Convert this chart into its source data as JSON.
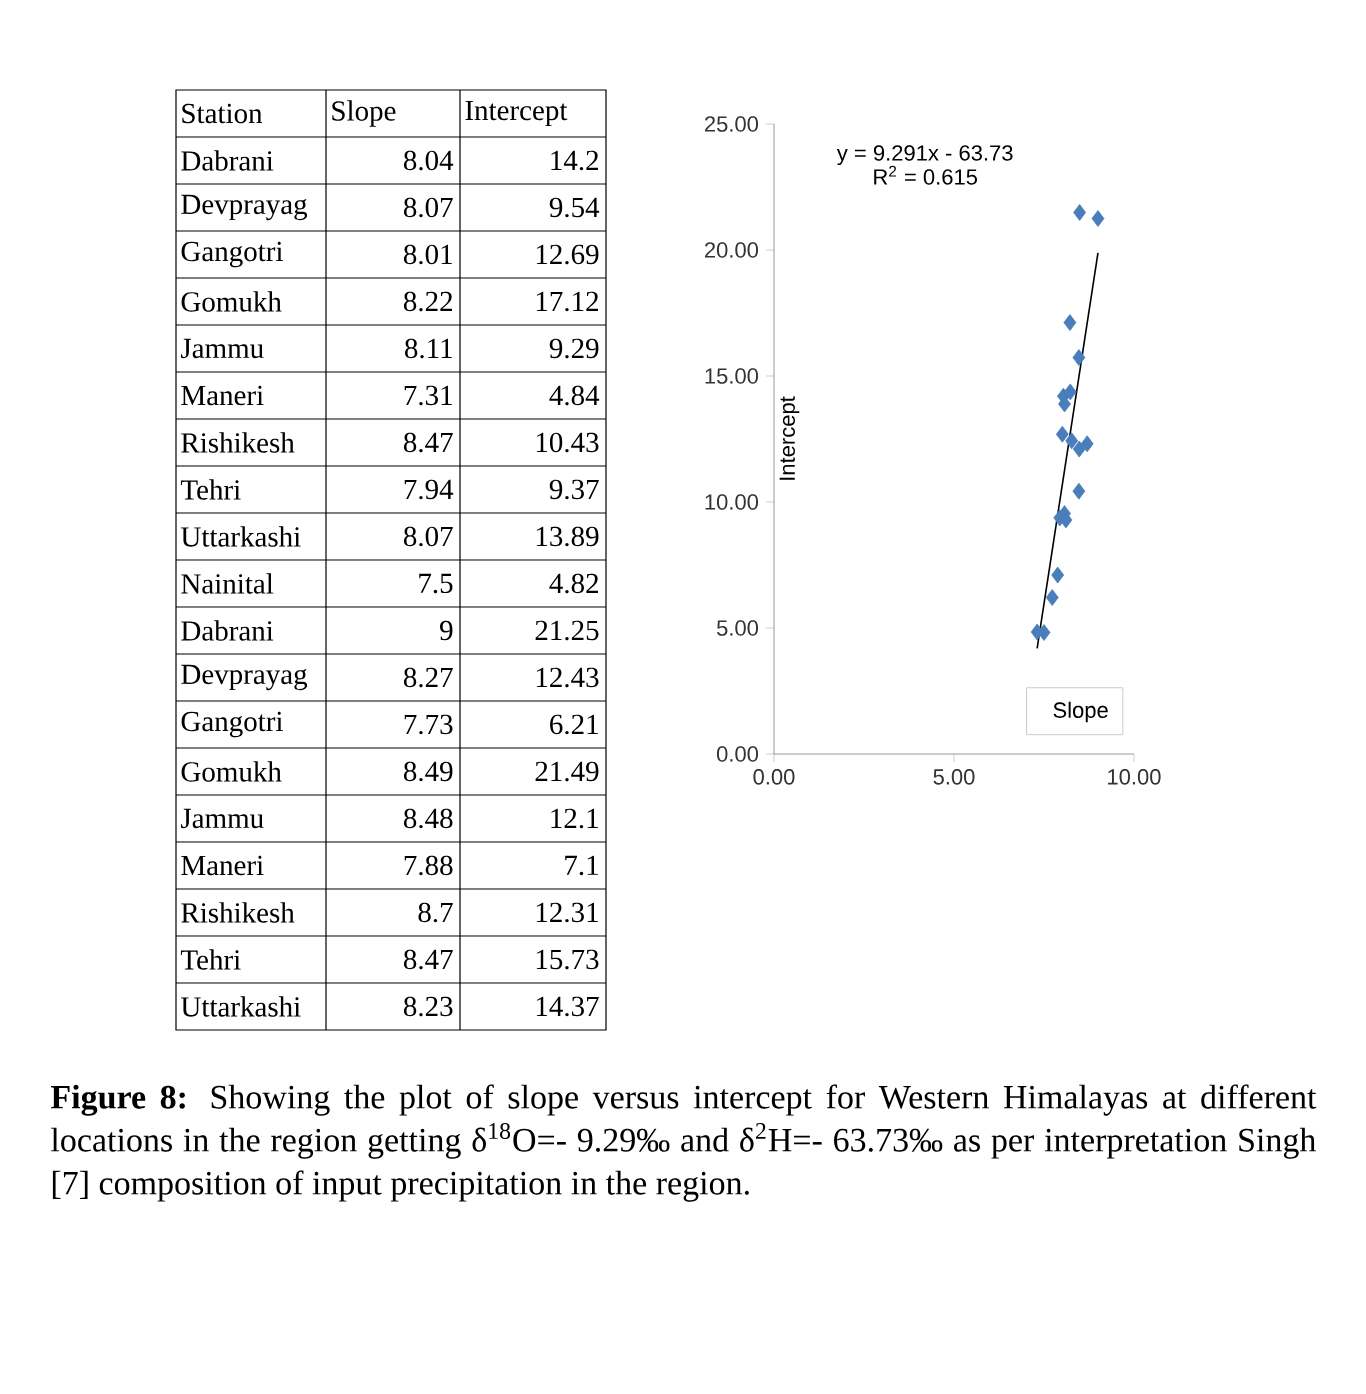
{
  "chart_data": [
    {
      "type": "other",
      "annotations": [
        "Station"
      ],
      "data_labels": true,
      "categories": [
        "Dabrani",
        "Devprayag",
        "Gangotri",
        "Gomukh",
        "Jammu",
        "Maneri",
        "Rishikesh",
        "Tehri",
        "Uttarkashi",
        "Nainital",
        "Dabrani",
        "Devprayag",
        "Gangotri",
        "Gomukh",
        "Jammu",
        "Maneri",
        "Rishikesh",
        "Tehri",
        "Uttarkashi"
      ],
      "series": [
        {
          "name": "Slope",
          "values": [
            8.04,
            8.07,
            8.01,
            8.22,
            8.11,
            7.31,
            8.47,
            7.94,
            8.07,
            7.5,
            9,
            8.27,
            7.73,
            8.49,
            8.48,
            7.88,
            8.7,
            8.47,
            8.23
          ]
        },
        {
          "name": "Intercept",
          "values": [
            14.2,
            9.54,
            12.69,
            17.12,
            9.29,
            4.84,
            10.43,
            9.37,
            13.89,
            4.82,
            21.25,
            12.43,
            6.21,
            21.49,
            12.1,
            7.1,
            12.31,
            15.73,
            14.37
          ]
        }
      ]
    },
    {
      "type": "scatter",
      "ylabel": "Intercept",
      "xlim": [
        0,
        10
      ],
      "ylim": [
        0,
        25
      ],
      "xticks": [
        {
          "value": 0,
          "label": "0.00"
        },
        {
          "value": 5,
          "label": "5.00"
        },
        {
          "value": 10,
          "label": "10.00"
        }
      ],
      "yticks": [
        {
          "value": 0,
          "label": "0.00"
        },
        {
          "value": 5,
          "label": "5.00"
        },
        {
          "value": 10,
          "label": "10.00"
        },
        {
          "value": 15,
          "label": "15.00"
        },
        {
          "value": 20,
          "label": "20.00"
        },
        {
          "value": 25,
          "label": "25.00"
        }
      ],
      "grid": false,
      "legend": "bottom right",
      "marker": "diamond",
      "series": [
        {
          "name": "Slope",
          "color": "#4a7ebb",
          "x": [
            8.04,
            8.07,
            8.01,
            8.22,
            8.11,
            7.31,
            8.47,
            7.94,
            8.07,
            7.5,
            9,
            8.27,
            7.73,
            8.49,
            8.48,
            7.88,
            8.7,
            8.47,
            8.23
          ],
          "values": [
            14.2,
            9.54,
            12.69,
            17.12,
            9.29,
            4.84,
            10.43,
            9.37,
            13.89,
            4.82,
            21.25,
            12.43,
            6.21,
            21.49,
            12.1,
            7.1,
            12.31,
            15.73,
            14.37
          ]
        },
        {
          "type": "line",
          "color": "#000000",
          "marker": "none",
          "x": [
            7.31,
            9.0
          ],
          "values": [
            4.19,
            19.89
          ]
        }
      ],
      "annotations": [
        "y = 9.291x - 63.73",
        "R$^{2}$ = 0.615",
        "**Figure 8:** Showing the plot of slope versus intercept for Western Himalayas at different locations in the region getting δ$^{18}$O=- 9.29‰ and δ$^{2}$H=- 63.73‰ as per interpretation Singh [7] composition of input precipitation in the region."
      ]
    }
  ]
}
